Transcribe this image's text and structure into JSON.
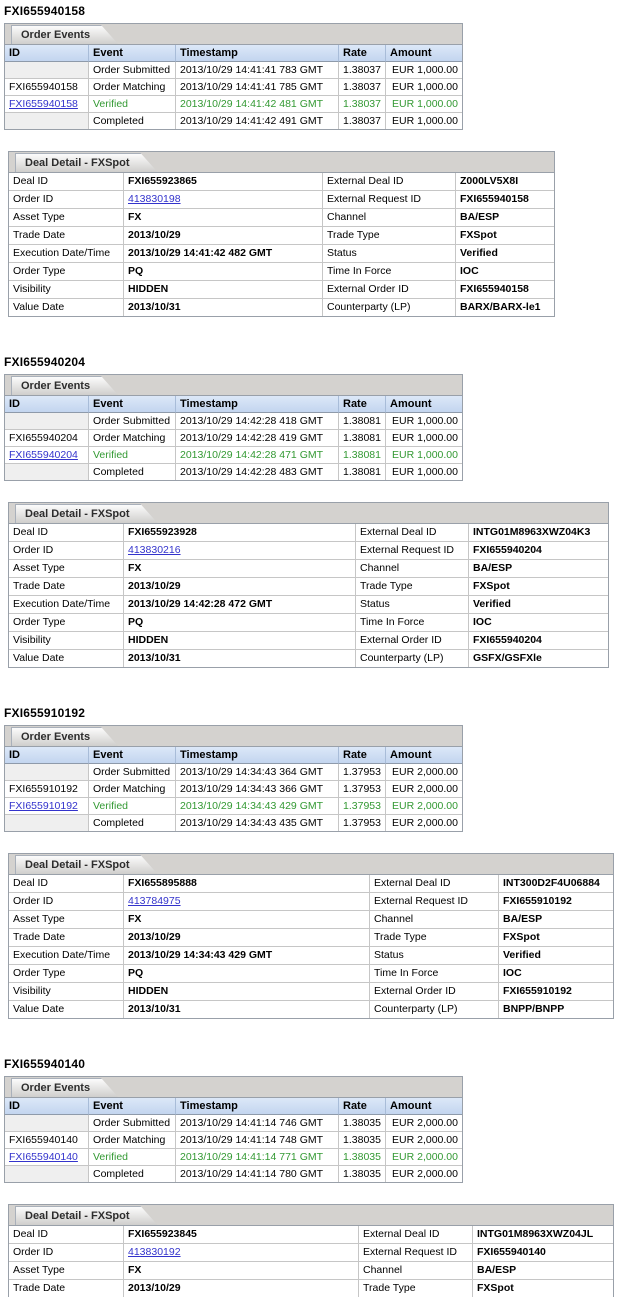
{
  "colors": {
    "link": "#3333cc",
    "verified_green": "#339933",
    "header_blue_top": "#dce8f8",
    "header_blue_bottom": "#c3d5ef"
  },
  "sections": [
    {
      "title": "FXI655940158",
      "order_events": {
        "tab": "Order Events",
        "columns": [
          "ID",
          "Event",
          "Timestamp",
          "Rate",
          "Amount"
        ],
        "rows": [
          {
            "id": "",
            "event": "Order Submitted",
            "timestamp": "2013/10/29 14:41:41 783 GMT",
            "rate": "1.38037",
            "amount": "EUR 1,000.00",
            "state": "normal",
            "id_link": false
          },
          {
            "id": "FXI655940158",
            "event": "Order Matching",
            "timestamp": "2013/10/29 14:41:41 785 GMT",
            "rate": "1.38037",
            "amount": "EUR 1,000.00",
            "state": "normal",
            "id_link": false
          },
          {
            "id": "FXI655940158",
            "event": "Verified",
            "timestamp": "2013/10/29 14:41:42 481 GMT",
            "rate": "1.38037",
            "amount": "EUR 1,000.00",
            "state": "verified",
            "id_link": true
          },
          {
            "id": "",
            "event": "Completed",
            "timestamp": "2013/10/29 14:41:42 491 GMT",
            "rate": "1.38037",
            "amount": "EUR 1,000.00",
            "state": "normal",
            "id_link": false
          }
        ]
      },
      "deal_detail": {
        "tab": "Deal Detail - FXSpot",
        "rows": [
          {
            "label1": "Deal ID",
            "value1": "FXI655923865",
            "value1_link": false,
            "label2": "External Deal ID",
            "value2": "Z000LV5X8I"
          },
          {
            "label1": "Order ID",
            "value1": "413830198",
            "value1_link": true,
            "label2": "External Request ID",
            "value2": "FXI655940158"
          },
          {
            "label1": "Asset Type",
            "value1": "FX",
            "value1_link": false,
            "label2": "Channel",
            "value2": "BA/ESP"
          },
          {
            "label1": "Trade Date",
            "value1": "2013/10/29",
            "value1_link": false,
            "label2": "Trade Type",
            "value2": "FXSpot"
          },
          {
            "label1": "Execution Date/Time",
            "value1": "2013/10/29 14:41:42 482 GMT",
            "value1_link": false,
            "label2": "Status",
            "value2": "Verified"
          },
          {
            "label1": "Order Type",
            "value1": "PQ",
            "value1_link": false,
            "label2": "Time In Force",
            "value2": "IOC"
          },
          {
            "label1": "Visibility",
            "value1": "HIDDEN",
            "value1_link": false,
            "label2": "External Order ID",
            "value2": "FXI655940158"
          },
          {
            "label1": "Value Date",
            "value1": "2013/10/31",
            "value1_link": false,
            "label2": "Counterparty (LP)",
            "value2": "BARX/BARX-le1"
          }
        ]
      }
    },
    {
      "title": "FXI655940204",
      "order_events": {
        "tab": "Order Events",
        "columns": [
          "ID",
          "Event",
          "Timestamp",
          "Rate",
          "Amount"
        ],
        "rows": [
          {
            "id": "",
            "event": "Order Submitted",
            "timestamp": "2013/10/29 14:42:28 418 GMT",
            "rate": "1.38081",
            "amount": "EUR 1,000.00",
            "state": "normal",
            "id_link": false
          },
          {
            "id": "FXI655940204",
            "event": "Order Matching",
            "timestamp": "2013/10/29 14:42:28 419 GMT",
            "rate": "1.38081",
            "amount": "EUR 1,000.00",
            "state": "normal",
            "id_link": false
          },
          {
            "id": "FXI655940204",
            "event": "Verified",
            "timestamp": "2013/10/29 14:42:28 471 GMT",
            "rate": "1.38081",
            "amount": "EUR 1,000.00",
            "state": "verified",
            "id_link": true
          },
          {
            "id": "",
            "event": "Completed",
            "timestamp": "2013/10/29 14:42:28 483 GMT",
            "rate": "1.38081",
            "amount": "EUR 1,000.00",
            "state": "normal",
            "id_link": false
          }
        ]
      },
      "deal_detail": {
        "tab": "Deal Detail - FXSpot",
        "rows": [
          {
            "label1": "Deal ID",
            "value1": "FXI655923928",
            "value1_link": false,
            "label2": "External Deal ID",
            "value2": "INTG01M8963XWZ04K3"
          },
          {
            "label1": "Order ID",
            "value1": "413830216",
            "value1_link": true,
            "label2": "External Request ID",
            "value2": "FXI655940204"
          },
          {
            "label1": "Asset Type",
            "value1": "FX",
            "value1_link": false,
            "label2": "Channel",
            "value2": "BA/ESP"
          },
          {
            "label1": "Trade Date",
            "value1": "2013/10/29",
            "value1_link": false,
            "label2": "Trade Type",
            "value2": "FXSpot"
          },
          {
            "label1": "Execution Date/Time",
            "value1": "2013/10/29 14:42:28 472 GMT",
            "value1_link": false,
            "label2": "Status",
            "value2": "Verified"
          },
          {
            "label1": "Order Type",
            "value1": "PQ",
            "value1_link": false,
            "label2": "Time In Force",
            "value2": "IOC"
          },
          {
            "label1": "Visibility",
            "value1": "HIDDEN",
            "value1_link": false,
            "label2": "External Order ID",
            "value2": "FXI655940204"
          },
          {
            "label1": "Value Date",
            "value1": "2013/10/31",
            "value1_link": false,
            "label2": "Counterparty (LP)",
            "value2": "GSFX/GSFXle"
          }
        ]
      }
    },
    {
      "title": "FXI655910192",
      "order_events": {
        "tab": "Order Events",
        "columns": [
          "ID",
          "Event",
          "Timestamp",
          "Rate",
          "Amount"
        ],
        "rows": [
          {
            "id": "",
            "event": "Order Submitted",
            "timestamp": "2013/10/29 14:34:43 364 GMT",
            "rate": "1.37953",
            "amount": "EUR 2,000.00",
            "state": "normal",
            "id_link": false
          },
          {
            "id": "FXI655910192",
            "event": "Order Matching",
            "timestamp": "2013/10/29 14:34:43 366 GMT",
            "rate": "1.37953",
            "amount": "EUR 2,000.00",
            "state": "normal",
            "id_link": false
          },
          {
            "id": "FXI655910192",
            "event": "Verified",
            "timestamp": "2013/10/29 14:34:43 429 GMT",
            "rate": "1.37953",
            "amount": "EUR 2,000.00",
            "state": "verified",
            "id_link": true
          },
          {
            "id": "",
            "event": "Completed",
            "timestamp": "2013/10/29 14:34:43 435 GMT",
            "rate": "1.37953",
            "amount": "EUR 2,000.00",
            "state": "normal",
            "id_link": false
          }
        ]
      },
      "deal_detail": {
        "tab": "Deal Detail - FXSpot",
        "rows": [
          {
            "label1": "Deal ID",
            "value1": "FXI655895888",
            "value1_link": false,
            "label2": "External Deal ID",
            "value2": "INT300D2F4U06884"
          },
          {
            "label1": "Order ID",
            "value1": "413784975",
            "value1_link": true,
            "label2": "External Request ID",
            "value2": "FXI655910192"
          },
          {
            "label1": "Asset Type",
            "value1": "FX",
            "value1_link": false,
            "label2": "Channel",
            "value2": "BA/ESP"
          },
          {
            "label1": "Trade Date",
            "value1": "2013/10/29",
            "value1_link": false,
            "label2": "Trade Type",
            "value2": "FXSpot"
          },
          {
            "label1": "Execution Date/Time",
            "value1": "2013/10/29 14:34:43 429 GMT",
            "value1_link": false,
            "label2": "Status",
            "value2": "Verified"
          },
          {
            "label1": "Order Type",
            "value1": "PQ",
            "value1_link": false,
            "label2": "Time In Force",
            "value2": "IOC"
          },
          {
            "label1": "Visibility",
            "value1": "HIDDEN",
            "value1_link": false,
            "label2": "External Order ID",
            "value2": "FXI655910192"
          },
          {
            "label1": "Value Date",
            "value1": "2013/10/31",
            "value1_link": false,
            "label2": "Counterparty (LP)",
            "value2": "BNPP/BNPP"
          }
        ]
      }
    },
    {
      "title": "FXI655940140",
      "order_events": {
        "tab": "Order Events",
        "columns": [
          "ID",
          "Event",
          "Timestamp",
          "Rate",
          "Amount"
        ],
        "rows": [
          {
            "id": "",
            "event": "Order Submitted",
            "timestamp": "2013/10/29 14:41:14 746 GMT",
            "rate": "1.38035",
            "amount": "EUR 2,000.00",
            "state": "normal",
            "id_link": false
          },
          {
            "id": "FXI655940140",
            "event": "Order Matching",
            "timestamp": "2013/10/29 14:41:14 748 GMT",
            "rate": "1.38035",
            "amount": "EUR 2,000.00",
            "state": "normal",
            "id_link": false
          },
          {
            "id": "FXI655940140",
            "event": "Verified",
            "timestamp": "2013/10/29 14:41:14 771 GMT",
            "rate": "1.38035",
            "amount": "EUR 2,000.00",
            "state": "verified",
            "id_link": true
          },
          {
            "id": "",
            "event": "Completed",
            "timestamp": "2013/10/29 14:41:14 780 GMT",
            "rate": "1.38035",
            "amount": "EUR 2,000.00",
            "state": "normal",
            "id_link": false
          }
        ]
      },
      "deal_detail": {
        "tab": "Deal Detail - FXSpot",
        "rows": [
          {
            "label1": "Deal ID",
            "value1": "FXI655923845",
            "value1_link": false,
            "label2": "External Deal ID",
            "value2": "INTG01M8963XWZ04JL"
          },
          {
            "label1": "Order ID",
            "value1": "413830192",
            "value1_link": true,
            "label2": "External Request ID",
            "value2": "FXI655940140"
          },
          {
            "label1": "Asset Type",
            "value1": "FX",
            "value1_link": false,
            "label2": "Channel",
            "value2": "BA/ESP"
          },
          {
            "label1": "Trade Date",
            "value1": "2013/10/29",
            "value1_link": false,
            "label2": "Trade Type",
            "value2": "FXSpot"
          }
        ]
      }
    }
  ]
}
